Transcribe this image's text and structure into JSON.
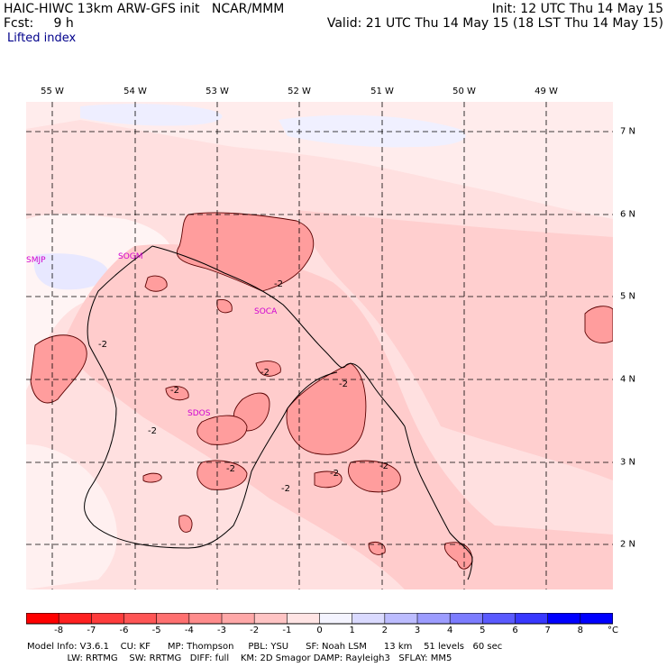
{
  "header": {
    "line1_left": "HAIC-HIWC 13km ARW-GFS init   NCAR/MMM",
    "line1_right": "Init: 12 UTC Thu 14 May 15",
    "line2_left": "Fcst:     9 h",
    "line2_right": "Valid: 21 UTC Thu 14 May 15 (18 LST Thu 14 May 15)",
    "field": "Lifted index"
  },
  "map": {
    "lon_labels": [
      "55 W",
      "54 W",
      "53 W",
      "52 W",
      "51 W",
      "50 W",
      "49 W"
    ],
    "lat_labels": [
      "7 N",
      "6 N",
      "5 N",
      "4 N",
      "3 N",
      "2 N"
    ],
    "stations": [
      "SMJP",
      "SOGM",
      "SOCA",
      "SDOS"
    ],
    "contour_label": "-2"
  },
  "colorbar": {
    "ticks": [
      "-8",
      "-7",
      "-6",
      "-5",
      "-4",
      "-3",
      "-2",
      "-1",
      "0",
      "1",
      "2",
      "3",
      "4",
      "5",
      "6",
      "7",
      "8"
    ],
    "unit": "°C",
    "colors": [
      "#ff0000",
      "#ff2020",
      "#ff3c3c",
      "#ff5555",
      "#ff7070",
      "#ff8c8c",
      "#ffa8a8",
      "#ffc4c4",
      "#ffe4e4",
      "#f4f4ff",
      "#dadaff",
      "#bcbcff",
      "#9c9cff",
      "#7c7cff",
      "#5a5aff",
      "#3838ff",
      "#0000ff"
    ]
  },
  "footer": {
    "line1": "Model Info: V3.6.1    CU: KF      MP: Thompson     PBL: YSU      SF: Noah LSM      13 km    51 levels   60 sec",
    "line2": "              LW: RRTMG    SW: RRTMG   DIFF: full    KM: 2D Smagor DAMP: Rayleigh3   SFLAY: MM5"
  }
}
